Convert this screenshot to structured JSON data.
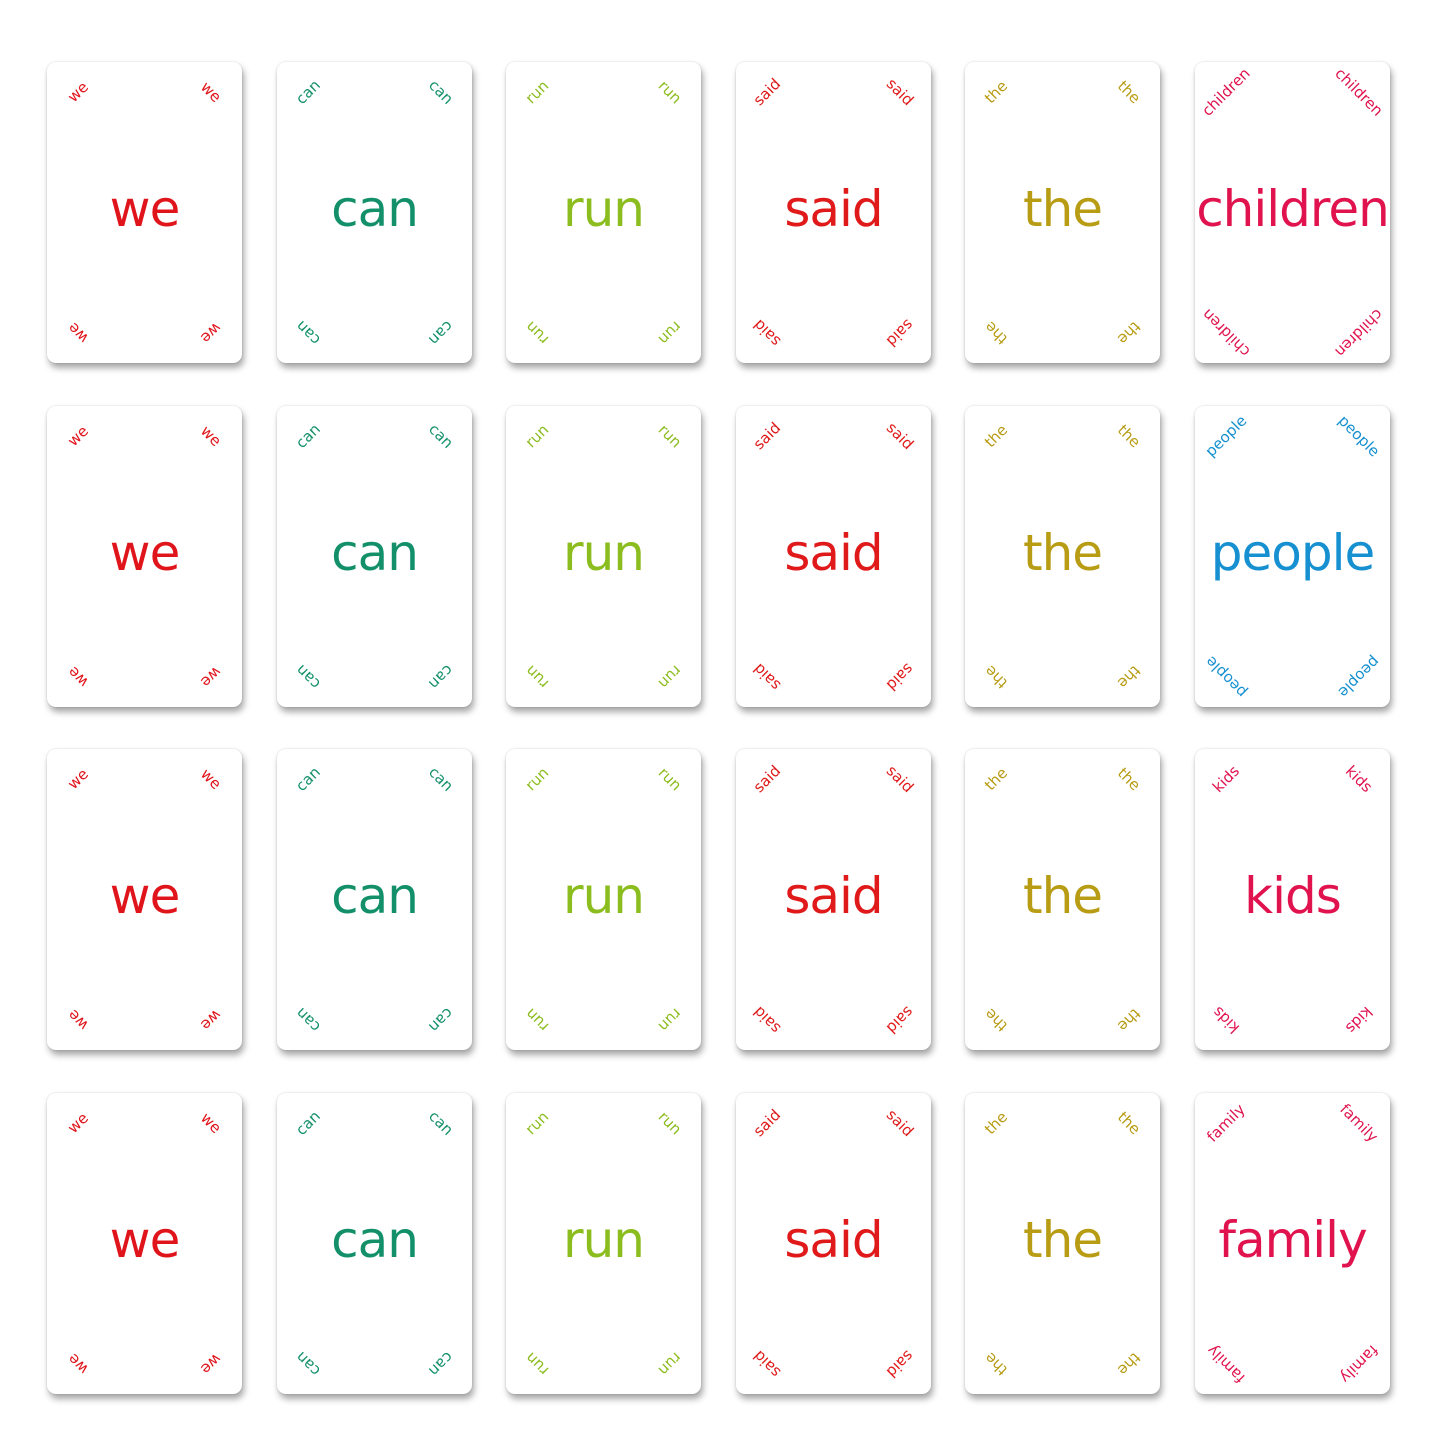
{
  "colors": {
    "we": "#e0141b",
    "can": "#13906a",
    "run": "#8cbd1e",
    "said": "#e01a1a",
    "the": "#b89c14",
    "children": "#e0134e",
    "people": "#1690d0",
    "kids": "#e0134e",
    "family": "#e0134e"
  },
  "rows": [
    [
      "we",
      "can",
      "run",
      "said",
      "the",
      "children"
    ],
    [
      "we",
      "can",
      "run",
      "said",
      "the",
      "people"
    ],
    [
      "we",
      "can",
      "run",
      "said",
      "the",
      "kids"
    ],
    [
      "we",
      "can",
      "run",
      "said",
      "the",
      "family"
    ]
  ]
}
